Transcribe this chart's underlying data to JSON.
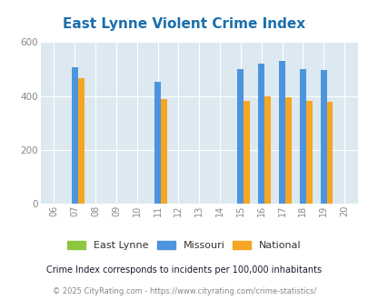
{
  "title": "East Lynne Violent Crime Index",
  "title_color": "#1a6fad",
  "years": [
    2006,
    2007,
    2008,
    2009,
    2010,
    2011,
    2012,
    2013,
    2014,
    2015,
    2016,
    2017,
    2018,
    2019,
    2020
  ],
  "east_lynne": [
    0,
    0,
    0,
    0,
    0,
    0,
    0,
    0,
    0,
    0,
    0,
    0,
    0,
    0,
    0
  ],
  "missouri": [
    0,
    507,
    0,
    0,
    0,
    452,
    0,
    0,
    0,
    499,
    521,
    529,
    500,
    496,
    0
  ],
  "national": [
    0,
    466,
    0,
    0,
    0,
    390,
    0,
    0,
    0,
    383,
    398,
    395,
    381,
    379,
    0
  ],
  "bar_width": 0.3,
  "ylim": [
    0,
    600
  ],
  "yticks": [
    0,
    200,
    400,
    600
  ],
  "color_east_lynne": "#8dc63f",
  "color_missouri": "#4d94de",
  "color_national": "#f5a623",
  "bg_color": "#dce9f0",
  "grid_color": "#ffffff",
  "footnote": "Crime Index corresponds to incidents per 100,000 inhabitants",
  "copyright": "© 2025 CityRating.com - https://www.cityrating.com/crime-statistics/",
  "footnote_color": "#1a1a2e",
  "copyright_color": "#888888"
}
